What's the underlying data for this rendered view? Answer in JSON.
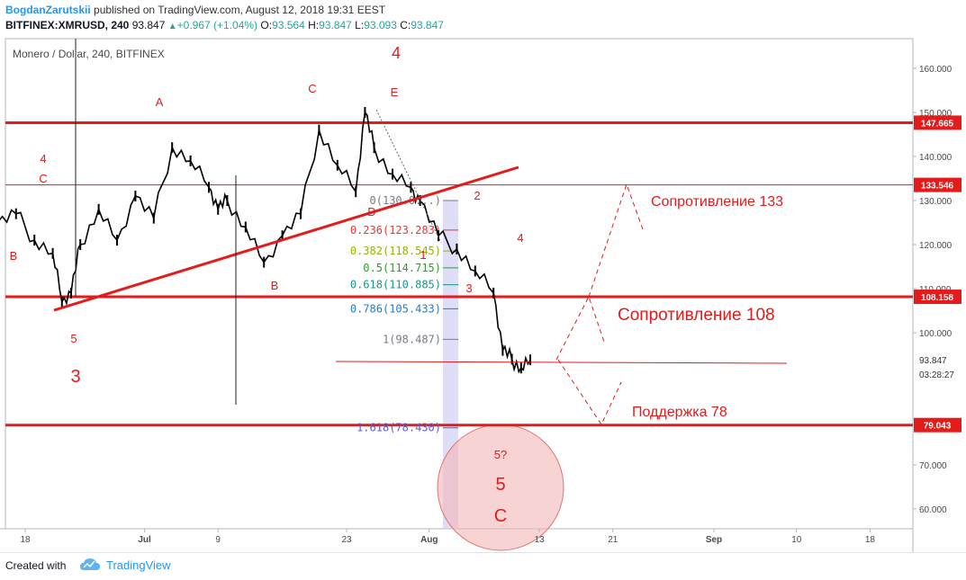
{
  "header": {
    "author": "BogdanZarutskii",
    "published": "published on TradingView.com, August 12, 2018 19:31 EEST",
    "symbol": "BITFINEX:XMRUSD, 240",
    "last": "93.847",
    "change": "+0.967 (+1.04%)",
    "open_label": "O:",
    "open": "93.564",
    "high_label": "H:",
    "high": "93.847",
    "low_label": "L:",
    "low": "93.093",
    "close_label": "C:",
    "close": "93.847"
  },
  "chart_data": {
    "type": "line",
    "title": "Monero / Dollar, 240, BITFINEX",
    "scale": "linear",
    "grid": false,
    "ylim": [
      55,
      167
    ],
    "y_ticks": [
      "160.000",
      "150.000",
      "140.000",
      "130.000",
      "120.000",
      "110.000",
      "100.000",
      "70.000",
      "60.000"
    ],
    "x_ticks": [
      "18",
      "Jul",
      "9",
      "23",
      "Aug",
      "13",
      "21",
      "Sep",
      "10",
      "18"
    ],
    "price_axis_labels": [
      {
        "value": 147.665,
        "text": "147.665",
        "color": "#e31b1b"
      },
      {
        "value": 133.546,
        "text": "133.546",
        "color": "#e31b1b"
      },
      {
        "value": 108.158,
        "text": "108.158",
        "color": "#e31b1b"
      },
      {
        "value": 79.043,
        "text": "79.043",
        "color": "#e31b1b"
      }
    ],
    "last_price": {
      "value": 93.847,
      "text": "93.847",
      "countdown": "03:28:27"
    },
    "horizontal_levels": [
      147.665,
      133.546,
      108.158,
      79.043
    ],
    "series": [
      {
        "x": [
          "Jun 14",
          "Jun 15",
          "Jun 17",
          "Jun 19",
          "Jun 21",
          "Jun 22",
          "Jun 23",
          "Jun 24",
          "Jun 26",
          "Jun 28",
          "Jun 30",
          "Jul 2",
          "Jul 4",
          "Jul 6",
          "Jul 8",
          "Jul 9",
          "Jul 10",
          "Jul 12",
          "Jul 14",
          "Jul 16",
          "Jul 18",
          "Jul 20",
          "Jul 22",
          "Jul 24",
          "Jul 25",
          "Jul 26",
          "Jul 28",
          "Jul 30",
          "Jul 31",
          "Aug 2",
          "Aug 4",
          "Aug 6",
          "Aug 8",
          "Aug 9",
          "Aug 10",
          "Aug 11",
          "Aug 12"
        ],
        "values": [
          128,
          125,
          127,
          121,
          118,
          107,
          109,
          120,
          128,
          121,
          131,
          126,
          142,
          139,
          133,
          128,
          130,
          124,
          116,
          122,
          127,
          146,
          138,
          132,
          150,
          142,
          136,
          133,
          130,
          122,
          119,
          114,
          109,
          96,
          94,
          92,
          93.847
        ]
      }
    ],
    "fib_levels": [
      {
        "ratio": "0",
        "value": 130.0,
        "text": "0(130.0...)",
        "color": "#787b86"
      },
      {
        "ratio": "0.236",
        "value": 123.283,
        "text": "0.236(123.283)",
        "color": "#e53935"
      },
      {
        "ratio": "0.382",
        "value": 118.545,
        "text": "0.382(118.545)",
        "color": "#9ab000"
      },
      {
        "ratio": "0.5",
        "value": 114.715,
        "text": "0.5(114.715)",
        "color": "#2e9e2e"
      },
      {
        "ratio": "0.618",
        "value": 110.885,
        "text": "0.618(110.885)",
        "color": "#17968f"
      },
      {
        "ratio": "0.786",
        "value": 105.433,
        "text": "0.786(105.433)",
        "color": "#2f7ab8"
      },
      {
        "ratio": "1",
        "value": 98.487,
        "text": "1(98.487)",
        "color": "#787b86"
      },
      {
        "ratio": "1.618",
        "value": 78.43,
        "text": "1.618(78.430)",
        "color": "#5b5bd6"
      }
    ],
    "annotations": [
      {
        "text": "4",
        "big": true
      },
      {
        "text": "A"
      },
      {
        "text": "C"
      },
      {
        "text": "E"
      },
      {
        "text": "D"
      },
      {
        "text": "4"
      },
      {
        "text": "C"
      },
      {
        "text": "B"
      },
      {
        "text": "B"
      },
      {
        "text": "5"
      },
      {
        "text": "3",
        "big": true
      },
      {
        "text": "2"
      },
      {
        "text": "1"
      },
      {
        "text": "3"
      },
      {
        "text": "4"
      },
      {
        "text": "5?"
      },
      {
        "text": "5",
        "big": true
      },
      {
        "text": "C",
        "big": true
      },
      {
        "text": "Сопротивление 133"
      },
      {
        "text": "Сопротивление 108",
        "big": true
      },
      {
        "text": "Поддержка 78"
      }
    ],
    "colors": {
      "accent": "#e31b1b",
      "candles": "#000000",
      "fib_fill": "#d6d6f5",
      "axis_text": "#4a4a4a"
    }
  },
  "footer": {
    "created": "Created with",
    "brand": "TradingView"
  }
}
